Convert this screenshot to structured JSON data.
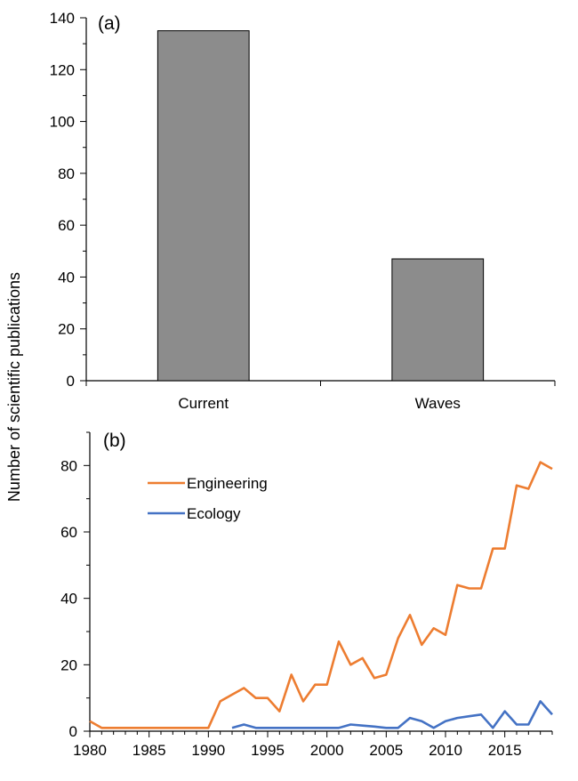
{
  "y_axis_title": "Number of scientific publications",
  "chart_data": [
    {
      "type": "bar",
      "panel_label": "(a)",
      "title": "",
      "xlabel": "",
      "ylabel": "Number of scientific publications",
      "categories": [
        "Current",
        "Waves"
      ],
      "values": [
        135,
        47
      ],
      "ylim": [
        0,
        140
      ],
      "yticks": [
        0,
        20,
        40,
        60,
        80,
        100,
        120,
        140
      ],
      "grid": false,
      "colors": {
        "bar": "#8c8c8c",
        "edge": "#000000"
      }
    },
    {
      "type": "line",
      "panel_label": "(b)",
      "title": "",
      "xlabel": "",
      "ylabel": "Number of scientific publications",
      "xlim": [
        1980,
        2019
      ],
      "ylim": [
        0,
        90
      ],
      "xticks": [
        1980,
        1985,
        1990,
        1995,
        2000,
        2005,
        2010,
        2015
      ],
      "yticks": [
        0,
        20,
        40,
        60,
        80
      ],
      "grid": false,
      "legend_position": "top-left",
      "series": [
        {
          "name": "Engineering",
          "color": "#ed7d31",
          "x": [
            1980,
            1981,
            1982,
            1983,
            1984,
            1985,
            1986,
            1987,
            1988,
            1989,
            1990,
            1991,
            1992,
            1993,
            1994,
            1995,
            1996,
            1997,
            1998,
            1999,
            2000,
            2001,
            2002,
            2003,
            2004,
            2005,
            2006,
            2007,
            2008,
            2009,
            2010,
            2011,
            2012,
            2013,
            2014,
            2015,
            2016,
            2017,
            2018,
            2019
          ],
          "values": [
            3,
            1,
            1,
            1,
            1,
            1,
            1,
            1,
            1,
            1,
            1,
            9,
            11,
            13,
            10,
            10,
            6,
            17,
            9,
            14,
            14,
            27,
            20,
            22,
            16,
            17,
            28,
            35,
            26,
            31,
            29,
            44,
            43,
            43,
            55,
            55,
            74,
            73,
            81,
            79
          ]
        },
        {
          "name": "Ecology",
          "color": "#4472c4",
          "x": [
            1992,
            1993,
            1994,
            1995,
            1996,
            1997,
            1998,
            1999,
            2000,
            2001,
            2002,
            2003,
            2004,
            2005,
            2006,
            2007,
            2008,
            2009,
            2010,
            2011,
            2012,
            2013,
            2014,
            2015,
            2016,
            2017,
            2018,
            2019
          ],
          "values": [
            1,
            2,
            1,
            1,
            1,
            1,
            1,
            1,
            1,
            1,
            2,
            1.7,
            1.4,
            1,
            1,
            4,
            3,
            1,
            3,
            4,
            4.5,
            5,
            1,
            6,
            2,
            2,
            9,
            5
          ]
        }
      ]
    }
  ]
}
